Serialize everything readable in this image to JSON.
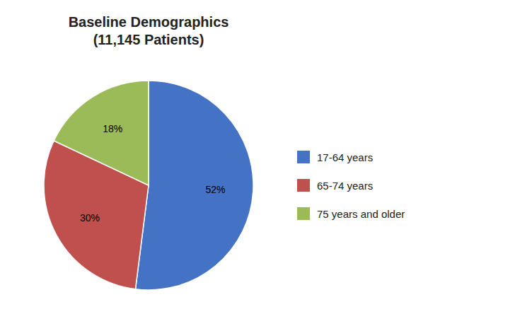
{
  "chart_data": {
    "type": "pie",
    "title": "Baseline Demographics\n(11,145 Patients)",
    "categories": [
      "17-64 years",
      "65-74 years",
      "75 years and older"
    ],
    "values": [
      52,
      30,
      18
    ],
    "value_labels": [
      "52%",
      "30%",
      "18%"
    ],
    "colors": [
      "#4472C4",
      "#C0504D",
      "#9BBB59"
    ],
    "data_labels": true,
    "legend": "right"
  }
}
